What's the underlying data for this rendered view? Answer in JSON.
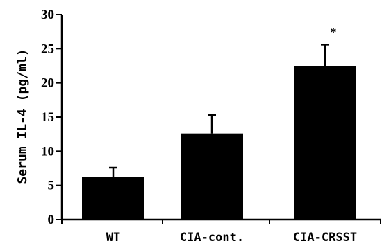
{
  "chart_data": {
    "type": "bar",
    "title": "",
    "xlabel": "",
    "ylabel": "Serum IL-4 (pg/ml)",
    "ylim": [
      0,
      30
    ],
    "yticks": [
      0,
      5,
      10,
      15,
      20,
      25,
      30
    ],
    "grid": false,
    "categories": [
      "WT",
      "CIA-cont.",
      "CIA-CRSST"
    ],
    "values": [
      6.2,
      12.6,
      22.5
    ],
    "errors": [
      1.4,
      2.7,
      3.1
    ],
    "annotations": [
      "",
      "",
      "*"
    ],
    "colors": {
      "bar": "#000000",
      "axis": "#000000",
      "background": "#ffffff"
    }
  }
}
